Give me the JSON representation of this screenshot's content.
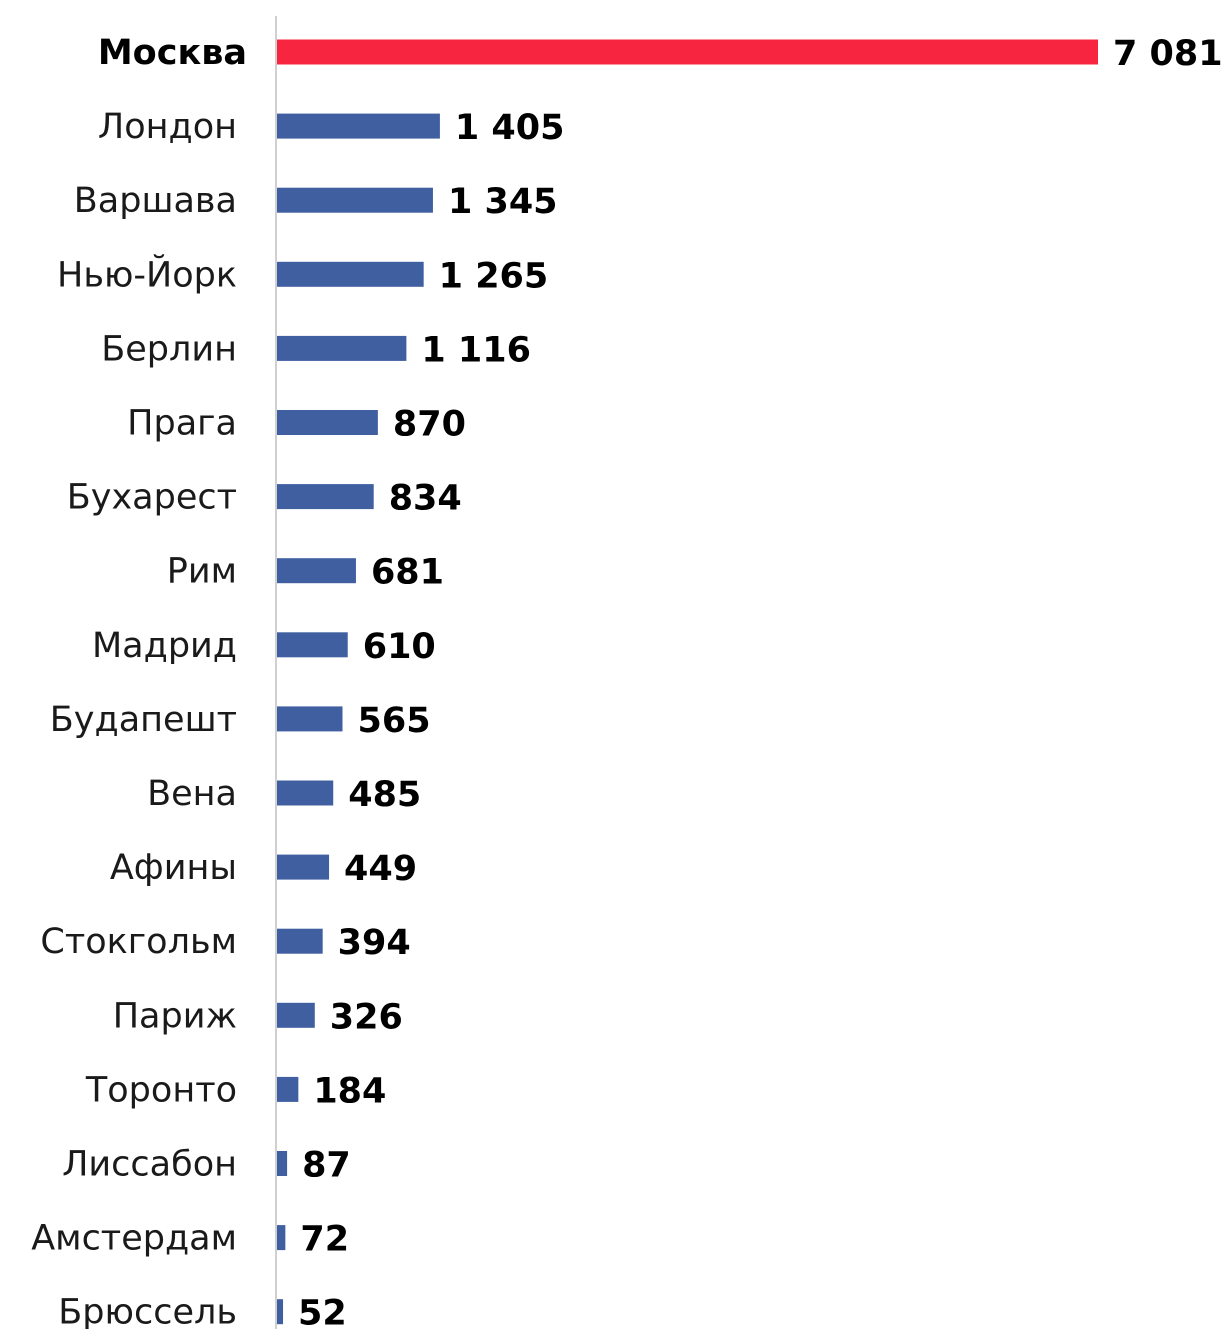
{
  "chart_data": {
    "type": "bar",
    "orientation": "horizontal",
    "categories": [
      "Москва",
      "Лондон",
      "Варшава",
      "Нью-Йорк",
      "Берлин",
      "Прага",
      "Бухарест",
      "Рим",
      "Мадрид",
      "Будапешт",
      "Вена",
      "Афины",
      "Стокгольм",
      "Париж",
      "Торонто",
      "Лиссабон",
      "Амстердам",
      "Брюссель"
    ],
    "values": [
      7081,
      1405,
      1345,
      1265,
      1116,
      870,
      834,
      681,
      610,
      565,
      485,
      449,
      394,
      326,
      184,
      87,
      72,
      52
    ],
    "value_labels": [
      "7 081",
      "1 405",
      "1 345",
      "1 265",
      "1 116",
      "870",
      "834",
      "681",
      "610",
      "565",
      "485",
      "449",
      "394",
      "326",
      "184",
      "87",
      "72",
      "52"
    ],
    "highlight_index": 0,
    "colors": {
      "bar": "#3f5fa1",
      "highlight": "#f7253f",
      "axis": "#d0d0d0"
    },
    "xlim": [
      0,
      7081
    ],
    "grid": false,
    "legend": "none",
    "title": "",
    "xlabel": "",
    "ylabel": ""
  }
}
